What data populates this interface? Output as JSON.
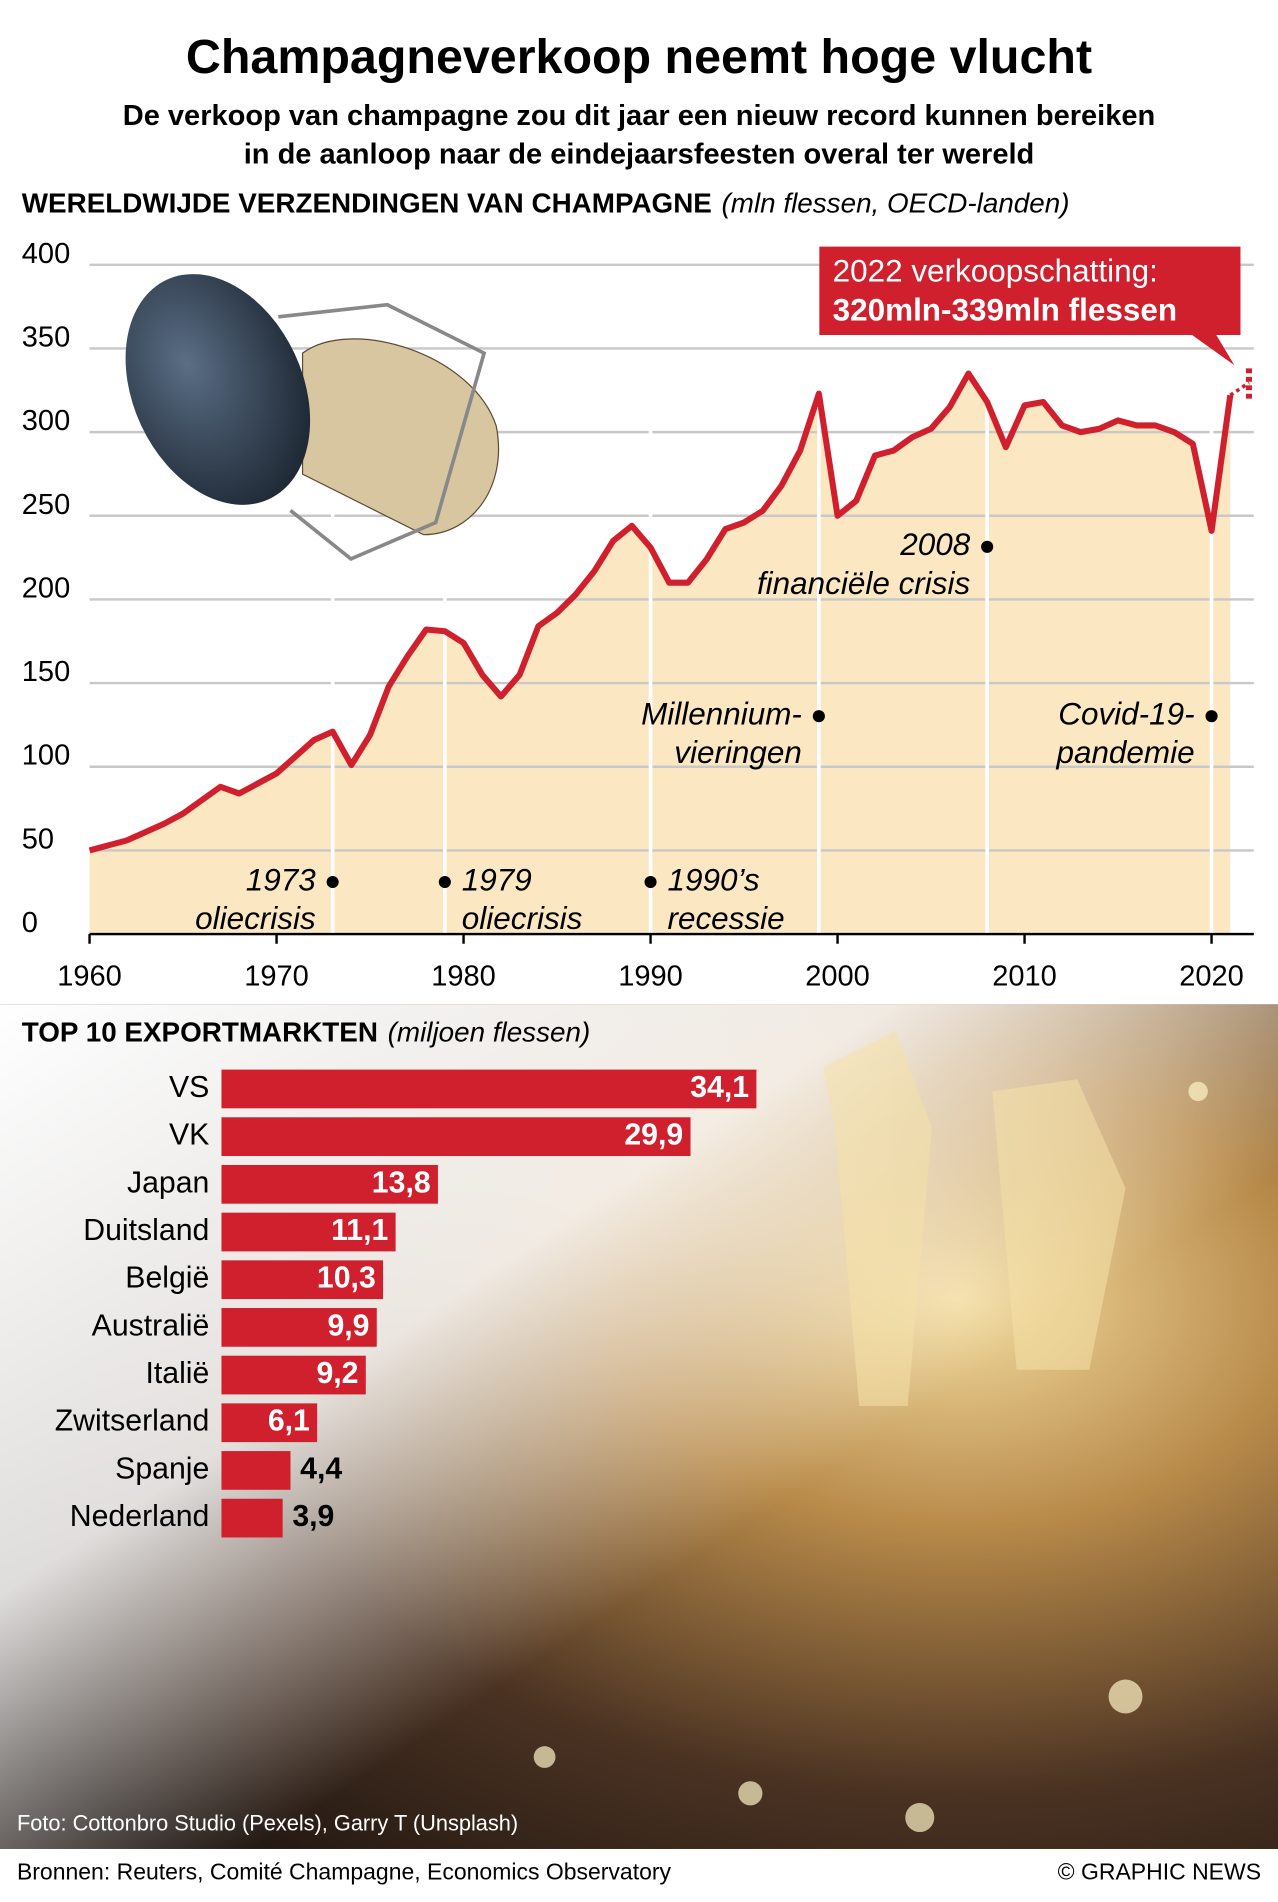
{
  "header": {
    "title": "Champagneverkoop neemt hoge vlucht",
    "subtitle": [
      "De verkoop van champagne zou dit jaar een nieuw record kunnen bereiken",
      "in de aanloop naar de eindejaarsfeesten overal ter wereld"
    ]
  },
  "chart_data": [
    {
      "type": "line",
      "title": "WERELDWIJDE VERZENDINGEN VAN CHAMPAGNE",
      "unit": "(mln flessen, OECD-landen)",
      "x": [
        1960,
        1961,
        1962,
        1963,
        1964,
        1965,
        1966,
        1967,
        1968,
        1969,
        1970,
        1971,
        1972,
        1973,
        1974,
        1975,
        1976,
        1977,
        1978,
        1979,
        1980,
        1981,
        1982,
        1983,
        1984,
        1985,
        1986,
        1987,
        1988,
        1989,
        1990,
        1991,
        1992,
        1993,
        1994,
        1995,
        1996,
        1997,
        1998,
        1999,
        2000,
        2001,
        2002,
        2003,
        2004,
        2005,
        2006,
        2007,
        2008,
        2009,
        2010,
        2011,
        2012,
        2013,
        2014,
        2015,
        2016,
        2017,
        2018,
        2019,
        2020,
        2021
      ],
      "series": [
        {
          "name": "Verzendingen",
          "color": "#d0202e",
          "values": [
            50,
            53,
            56,
            61,
            66,
            72,
            80,
            88,
            84,
            90,
            96,
            106,
            116,
            121,
            101,
            119,
            148,
            166,
            182,
            181,
            174,
            155,
            142,
            155,
            184,
            192,
            203,
            217,
            235,
            244,
            231,
            210,
            210,
            224,
            242,
            246,
            253,
            268,
            289,
            323,
            250,
            259,
            286,
            289,
            297,
            302,
            315,
            335,
            318,
            291,
            316,
            318,
            304,
            300,
            302,
            307,
            304,
            304,
            300,
            293,
            241,
            322
          ]
        }
      ],
      "estimate": {
        "x": 2022,
        "low": 320,
        "high": 339,
        "label": [
          "2022 verkoopschatting:",
          "320mln-339mln flessen"
        ]
      },
      "annotations": [
        {
          "x": 1973,
          "text": [
            "1973",
            "oliecrisis"
          ]
        },
        {
          "x": 1979,
          "text": [
            "1979",
            "oliecrisis"
          ]
        },
        {
          "x": 1990,
          "text": [
            "1990’s",
            "recessie"
          ]
        },
        {
          "x": 1999,
          "text": [
            "Millennium-",
            "vieringen"
          ]
        },
        {
          "x": 2008,
          "text": [
            "2008",
            "financiële crisis"
          ]
        },
        {
          "x": 2020,
          "text": [
            "Covid-19-",
            "pandemie"
          ]
        }
      ],
      "xlim": [
        1960,
        2022
      ],
      "xticks": [
        1960,
        1970,
        1980,
        1990,
        2000,
        2010,
        2020
      ],
      "ylim": [
        0,
        400
      ],
      "yticks": [
        0,
        50,
        100,
        150,
        200,
        250,
        300,
        350,
        400
      ],
      "grid": true,
      "area_color": "#fbe8c3"
    },
    {
      "type": "hbar",
      "title": "TOP 10 EXPORTMARKTEN",
      "unit": "(miljoen flessen)",
      "categories": [
        "VS",
        "VK",
        "Japan",
        "Duitsland",
        "België",
        "Australië",
        "Italië",
        "Zwitserland",
        "Spanje",
        "Nederland"
      ],
      "values": [
        34.1,
        29.9,
        13.8,
        11.1,
        10.3,
        9.9,
        9.2,
        6.1,
        4.4,
        3.9
      ],
      "value_labels": [
        "34,1",
        "29,9",
        "13,8",
        "11,1",
        "10,3",
        "9,9",
        "9,2",
        "6,1",
        "4,4",
        "3,9"
      ],
      "color": "#d0202e"
    }
  ],
  "footer": {
    "photo_credit": "Foto: Cottonbro Studio (Pexels), Garry T (Unsplash)",
    "sources": "Bronnen: Reuters, Comité Champagne, Economics Observatory",
    "copyright": "© GRAPHIC NEWS"
  }
}
